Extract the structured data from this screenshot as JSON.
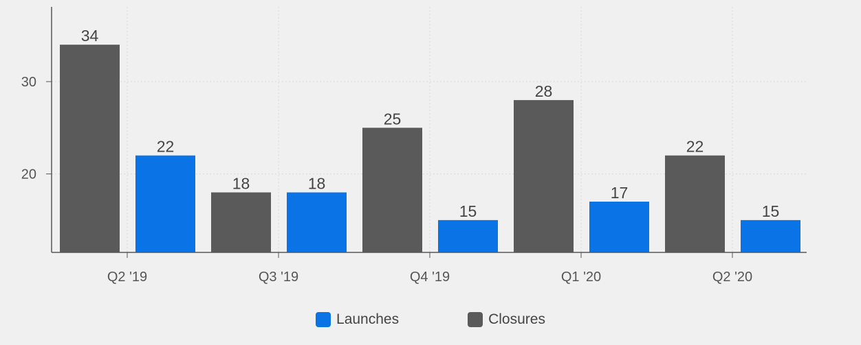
{
  "chart_data": {
    "type": "bar",
    "categories": [
      "Q2 '19",
      "Q3 '19",
      "Q4 '19",
      "Q1 '20",
      "Q2 '20"
    ],
    "series": [
      {
        "name": "Closures",
        "values": [
          34,
          18,
          25,
          28,
          22
        ],
        "color": "#5a5a5a"
      },
      {
        "name": "Launches",
        "values": [
          22,
          18,
          15,
          17,
          15
        ],
        "color": "#0a74e6"
      }
    ],
    "yticks": [
      20,
      30
    ],
    "ylim": [
      11.5,
      38
    ],
    "grid": true,
    "legend_position": "bottom-center",
    "legend_order": [
      "Launches",
      "Closures"
    ]
  }
}
